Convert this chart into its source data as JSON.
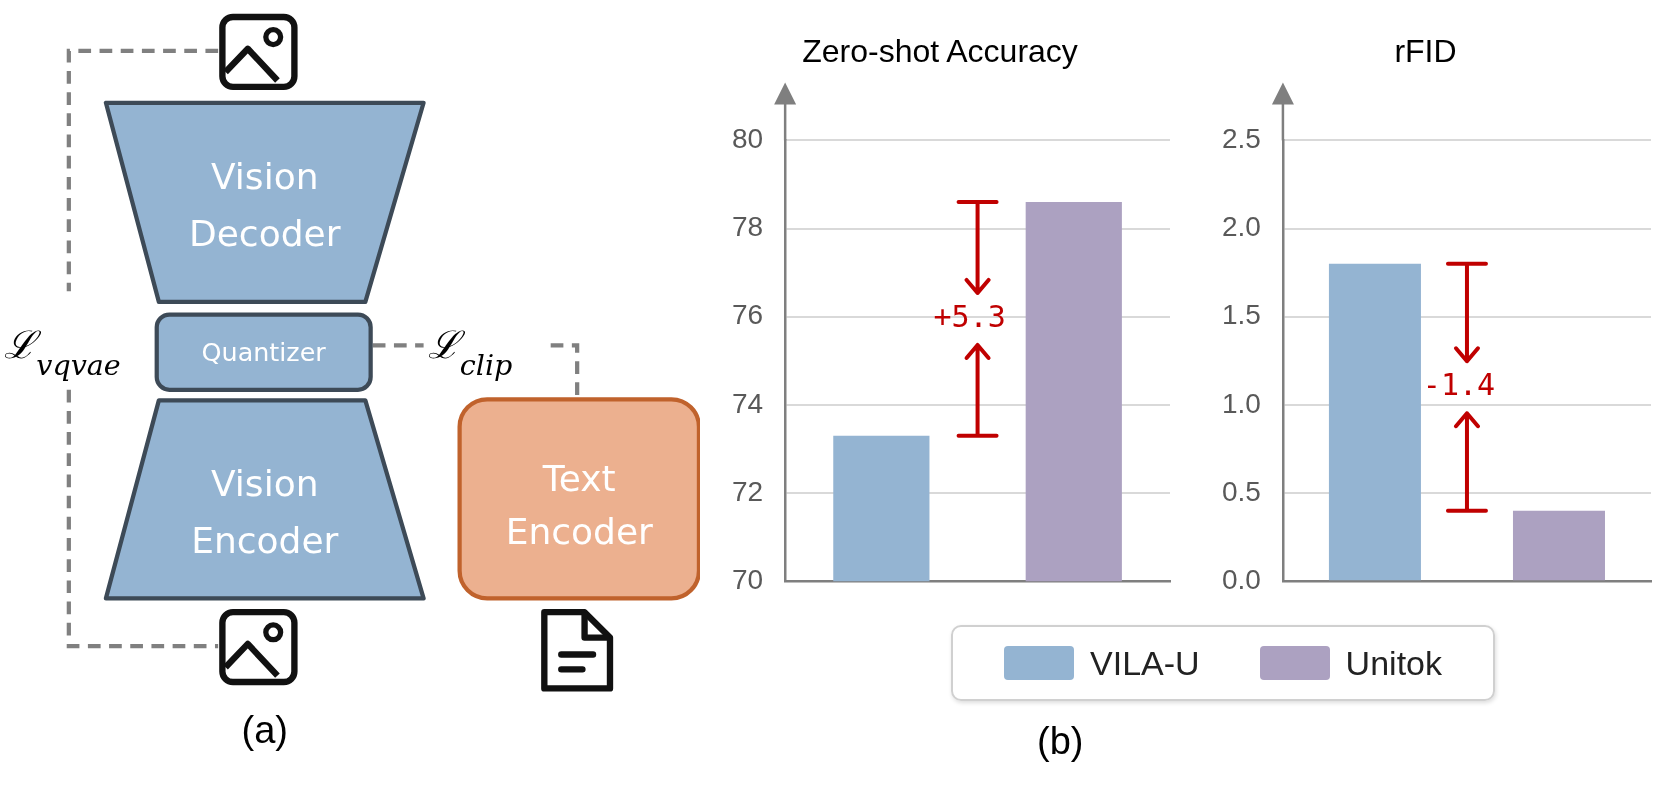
{
  "chart_data": [
    {
      "type": "other",
      "annotations": [
        "Vision Decoder",
        "Quantizer",
        "Vision Encoder",
        "Text Encoder",
        "ℒ$_{vqvae}$",
        "ℒ$_{clip}$",
        "(a)"
      ]
    },
    {
      "type": "bar",
      "title": "Zero-shot Accuracy",
      "categories": [
        null
      ],
      "series": [
        {
          "name": "VILA-U",
          "color": "#94b4d2",
          "values": [
            73.3
          ]
        },
        {
          "name": "Unitok",
          "color": "#aca1c1",
          "values": [
            78.6
          ]
        }
      ],
      "ylim": [
        70,
        80
      ],
      "yticks": [
        70,
        72,
        74,
        76,
        78,
        80
      ],
      "grid": "y",
      "legend": "bottom",
      "annotations": [
        "+5.3",
        "(b)"
      ]
    },
    {
      "type": "bar",
      "title": "rFID",
      "categories": [
        null
      ],
      "series": [
        {
          "name": "VILA-U",
          "color": "#94b4d2",
          "values": [
            1.8
          ]
        },
        {
          "name": "Unitok",
          "color": "#aca1c1",
          "values": [
            0.4
          ]
        }
      ],
      "ylim": [
        0,
        2.5
      ],
      "legend": "bottom",
      "yticks": [
        {
          "value": 0,
          "label": "0.0"
        },
        {
          "value": 0.5,
          "label": "0.5"
        },
        {
          "value": 1,
          "label": "1.0"
        },
        {
          "value": 1.5,
          "label": "1.5"
        },
        {
          "value": 2,
          "label": "2.0"
        },
        {
          "value": 2.5,
          "label": "2.5"
        }
      ],
      "grid": "y",
      "annotations": [
        "-1.4"
      ]
    }
  ]
}
